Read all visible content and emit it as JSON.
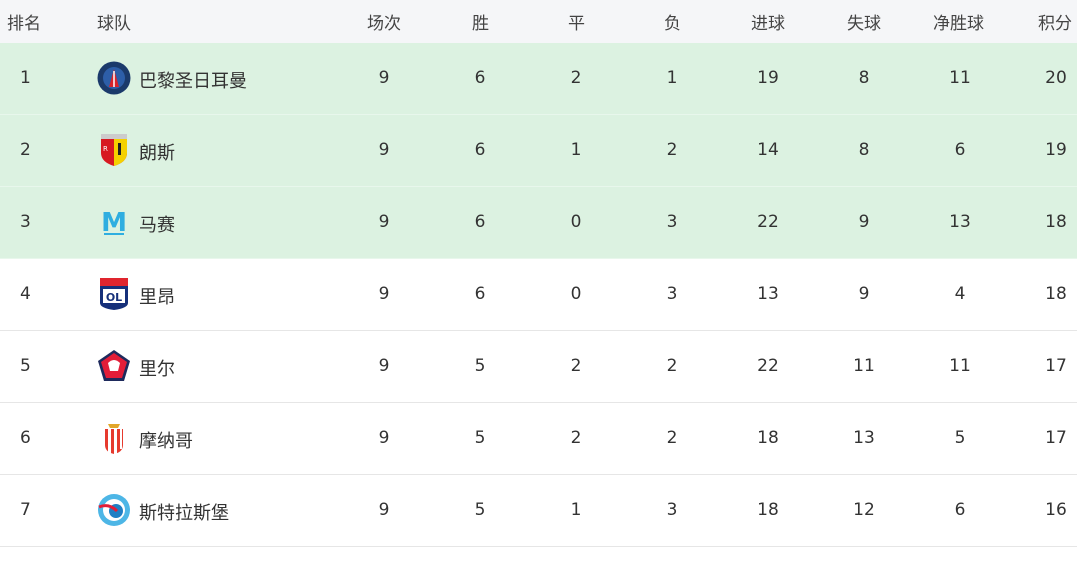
{
  "headers": {
    "rank": "排名",
    "team": "球队",
    "played": "场次",
    "won": "胜",
    "drawn": "平",
    "lost": "负",
    "gf": "进球",
    "ga": "失球",
    "gd": "净胜球",
    "pts": "积分"
  },
  "highlight_color": "#dcf2e1",
  "rows": [
    {
      "rank": "1",
      "team": "巴黎圣日耳曼",
      "logo": "psg-crest-icon",
      "played": "9",
      "won": "6",
      "drawn": "2",
      "lost": "1",
      "gf": "19",
      "ga": "8",
      "gd": "11",
      "pts": "20",
      "highlight": true
    },
    {
      "rank": "2",
      "team": "朗斯",
      "logo": "rc-lens-crest-icon",
      "played": "9",
      "won": "6",
      "drawn": "1",
      "lost": "2",
      "gf": "14",
      "ga": "8",
      "gd": "6",
      "pts": "19",
      "highlight": true
    },
    {
      "rank": "3",
      "team": "马赛",
      "logo": "marseille-crest-icon",
      "played": "9",
      "won": "6",
      "drawn": "0",
      "lost": "3",
      "gf": "22",
      "ga": "9",
      "gd": "13",
      "pts": "18",
      "highlight": true
    },
    {
      "rank": "4",
      "team": "里昂",
      "logo": "lyon-crest-icon",
      "played": "9",
      "won": "6",
      "drawn": "0",
      "lost": "3",
      "gf": "13",
      "ga": "9",
      "gd": "4",
      "pts": "18",
      "highlight": false
    },
    {
      "rank": "5",
      "team": "里尔",
      "logo": "lille-crest-icon",
      "played": "9",
      "won": "5",
      "drawn": "2",
      "lost": "2",
      "gf": "22",
      "ga": "11",
      "gd": "11",
      "pts": "17",
      "highlight": false
    },
    {
      "rank": "6",
      "team": "摩纳哥",
      "logo": "monaco-crest-icon",
      "played": "9",
      "won": "5",
      "drawn": "2",
      "lost": "2",
      "gf": "18",
      "ga": "13",
      "gd": "5",
      "pts": "17",
      "highlight": false
    },
    {
      "rank": "7",
      "team": "斯特拉斯堡",
      "logo": "strasbourg-crest-icon",
      "played": "9",
      "won": "5",
      "drawn": "1",
      "lost": "3",
      "gf": "18",
      "ga": "12",
      "gd": "6",
      "pts": "16",
      "highlight": false
    }
  ]
}
